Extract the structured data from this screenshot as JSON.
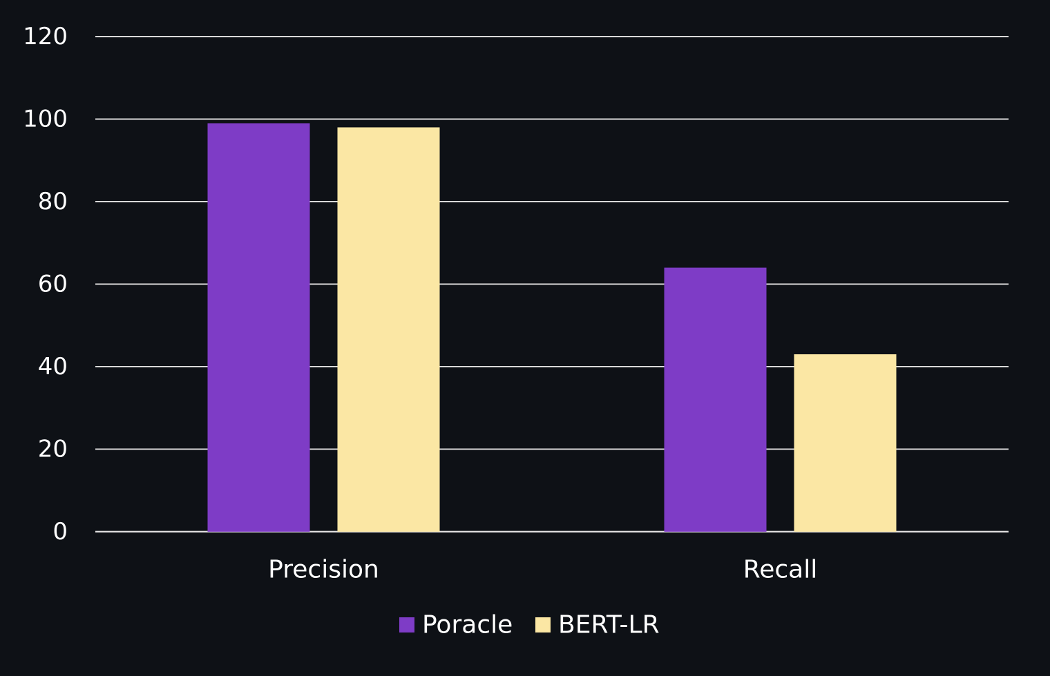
{
  "chart_data": {
    "type": "bar",
    "categories": [
      "Precision",
      "Recall"
    ],
    "series": [
      {
        "name": "Poracle",
        "values": [
          99,
          64
        ],
        "color": "#7e3cc6"
      },
      {
        "name": "BERT-LR",
        "values": [
          98,
          43
        ],
        "color": "#fbe7a4"
      }
    ],
    "ylim": [
      0,
      120
    ],
    "yticks": [
      0,
      20,
      40,
      60,
      80,
      100,
      120
    ],
    "grid": true,
    "legend_position": "bottom",
    "background": "#0e1116",
    "text_color": "#ffffff",
    "grid_color": "#d9d9d9"
  }
}
